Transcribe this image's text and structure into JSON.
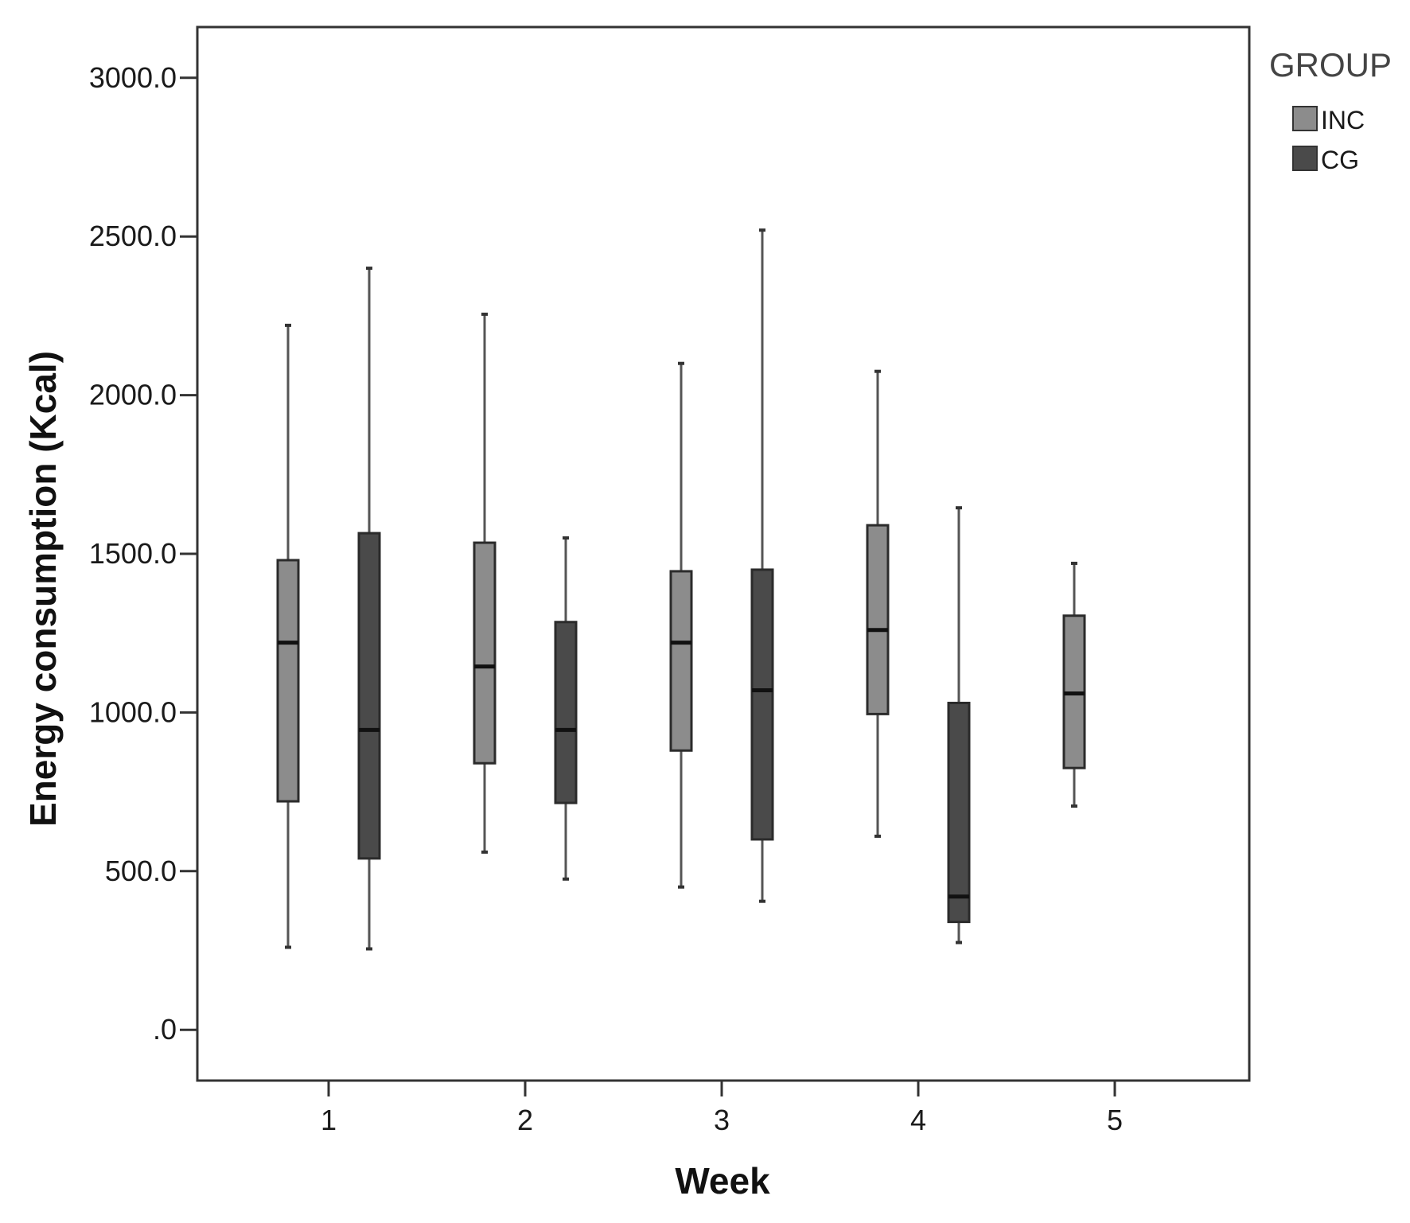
{
  "chart_data": {
    "type": "boxplot",
    "xlabel": "Week",
    "ylabel": "Energy consumption (Kcal)",
    "ylim": [
      -160,
      3160
    ],
    "y_ticks": [
      {
        "value": 0,
        "label": ".0"
      },
      {
        "value": 500,
        "label": "500.0"
      },
      {
        "value": 1000,
        "label": "1000.0"
      },
      {
        "value": 1500,
        "label": "1500.0"
      },
      {
        "value": 2000,
        "label": "2000.0"
      },
      {
        "value": 2500,
        "label": "2500.0"
      },
      {
        "value": 3000,
        "label": "3000.0"
      }
    ],
    "categories": [
      "1",
      "2",
      "3",
      "4",
      "5"
    ],
    "legend": {
      "title": "GROUP",
      "position": "right"
    },
    "grid": false,
    "series": [
      {
        "name": "INC",
        "color": "#8c8c8c",
        "boxes": [
          {
            "category": "1",
            "min": 260,
            "q1": 720,
            "median": 1220,
            "q3": 1480,
            "max": 2220
          },
          {
            "category": "2",
            "min": 560,
            "q1": 840,
            "median": 1145,
            "q3": 1535,
            "max": 2255
          },
          {
            "category": "3",
            "min": 450,
            "q1": 880,
            "median": 1220,
            "q3": 1445,
            "max": 2100
          },
          {
            "category": "4",
            "min": 610,
            "q1": 995,
            "median": 1260,
            "q3": 1590,
            "max": 2075
          },
          {
            "category": "5",
            "min": 705,
            "q1": 825,
            "median": 1060,
            "q3": 1305,
            "max": 1470
          }
        ]
      },
      {
        "name": "CG",
        "color": "#4a4a4a",
        "boxes": [
          {
            "category": "1",
            "min": 255,
            "q1": 540,
            "median": 945,
            "q3": 1565,
            "max": 2400
          },
          {
            "category": "2",
            "min": 475,
            "q1": 715,
            "median": 945,
            "q3": 1285,
            "max": 1550
          },
          {
            "category": "3",
            "min": 405,
            "q1": 600,
            "median": 1070,
            "q3": 1450,
            "max": 2520
          },
          {
            "category": "4",
            "min": 275,
            "q1": 340,
            "median": 420,
            "q3": 1030,
            "max": 1645
          }
        ]
      }
    ]
  }
}
